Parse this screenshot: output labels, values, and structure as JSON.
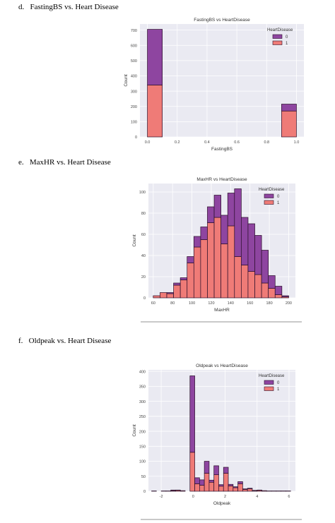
{
  "sections": [
    {
      "letter": "d.",
      "text": "FastingBS vs. Heart Disease"
    },
    {
      "letter": "e.",
      "text": "MaxHR vs. Heart Disease"
    },
    {
      "letter": "f.",
      "text": "Oldpeak vs. Heart Disease"
    }
  ],
  "colors": {
    "hd0": "#8e45a0",
    "hd1": "#ef7b77",
    "panel": "#eaeaf2",
    "grid": "#ffffff"
  },
  "chart_data": [
    {
      "type": "bar",
      "stacked": true,
      "title": "FastingBS vs HeartDisease",
      "xlabel": "FastingBS",
      "ylabel": "Count",
      "xlim": [
        -0.05,
        1.05
      ],
      "ylim": [
        0,
        740
      ],
      "xticks": [
        0.0,
        0.2,
        0.4,
        0.6,
        0.8,
        1.0
      ],
      "xtick_labels": [
        "0.0",
        "0.2",
        "0.4",
        "0.6",
        "0.8",
        "1.0"
      ],
      "yticks": [
        0,
        100,
        200,
        300,
        400,
        500,
        600,
        700
      ],
      "ytick_labels": [
        "0",
        "100",
        "200",
        "300",
        "400",
        "500",
        "600",
        "700"
      ],
      "bins": [
        [
          0.0,
          0.1
        ],
        [
          0.9,
          1.0
        ]
      ],
      "series": [
        {
          "name": "1",
          "values": [
            340,
            170
          ]
        },
        {
          "name": "0",
          "values": [
            365,
            45
          ]
        }
      ],
      "legend": {
        "title": "HeartDisease",
        "position": "top-right",
        "entries": [
          "0",
          "1"
        ]
      }
    },
    {
      "type": "bar",
      "stacked": true,
      "title": "MaxHR vs HeartDisease",
      "xlabel": "MaxHR",
      "ylabel": "Count",
      "xlim": [
        55,
        207
      ],
      "ylim": [
        0,
        108
      ],
      "xticks": [
        60,
        80,
        100,
        120,
        140,
        160,
        180,
        200
      ],
      "xtick_labels": [
        "60",
        "80",
        "100",
        "120",
        "140",
        "160",
        "180",
        "200"
      ],
      "yticks": [
        0,
        20,
        40,
        60,
        80,
        100
      ],
      "ytick_labels": [
        "0",
        "20",
        "40",
        "60",
        "80",
        "100"
      ],
      "bin_edges": [
        60,
        67,
        74,
        81,
        88,
        95,
        102,
        109,
        116,
        123,
        130,
        137,
        144,
        151,
        158,
        165,
        172,
        179,
        186,
        193,
        200
      ],
      "series": [
        {
          "name": "1",
          "values": [
            2,
            5,
            4,
            12,
            17,
            33,
            48,
            55,
            71,
            76,
            51,
            68,
            39,
            31,
            25,
            22,
            14,
            9,
            3,
            1
          ]
        },
        {
          "name": "0",
          "values": [
            0,
            0,
            1,
            2,
            2,
            6,
            10,
            12,
            15,
            21,
            27,
            31,
            64,
            45,
            45,
            37,
            31,
            12,
            8,
            1
          ]
        }
      ],
      "legend": {
        "title": "HeartDisease",
        "position": "top-right",
        "entries": [
          "0",
          "1"
        ]
      }
    },
    {
      "type": "bar",
      "stacked": true,
      "title": "Oldpeak vs HeartDisease",
      "xlabel": "Oldpeak",
      "ylabel": "Count",
      "xlim": [
        -2.8,
        6.4
      ],
      "ylim": [
        0,
        405
      ],
      "xticks": [
        -2,
        0,
        2,
        4,
        6
      ],
      "xtick_labels": [
        "-2",
        "0",
        "2",
        "4",
        "6"
      ],
      "yticks": [
        0,
        50,
        100,
        150,
        200,
        250,
        300,
        350,
        400
      ],
      "ytick_labels": [
        "0",
        "50",
        "100",
        "150",
        "200",
        "250",
        "300",
        "350",
        "400"
      ],
      "bin_edges": [
        -2.6,
        -2.3,
        -2.0,
        -1.7,
        -1.4,
        -1.1,
        -0.8,
        -0.5,
        -0.2,
        0.1,
        0.4,
        0.7,
        1.0,
        1.3,
        1.6,
        1.9,
        2.2,
        2.5,
        2.8,
        3.1,
        3.4,
        3.7,
        4.0,
        4.3,
        4.6,
        4.9,
        5.2,
        5.5,
        5.8,
        6.1
      ],
      "series": [
        {
          "name": "1",
          "values": [
            1,
            0,
            0,
            0,
            2,
            3,
            2,
            0,
            130,
            25,
            20,
            60,
            30,
            55,
            17,
            60,
            18,
            12,
            25,
            6,
            8,
            2,
            3,
            2,
            1,
            1,
            0,
            1,
            1
          ]
        },
        {
          "name": "0",
          "values": [
            0,
            0,
            1,
            1,
            2,
            1,
            0,
            0,
            255,
            20,
            18,
            40,
            7,
            30,
            5,
            20,
            5,
            3,
            7,
            2,
            2,
            1,
            1,
            0,
            0,
            0,
            1,
            0,
            0
          ]
        }
      ],
      "legend": {
        "title": "HeartDisease",
        "position": "top-right",
        "entries": [
          "0",
          "1"
        ]
      }
    }
  ]
}
